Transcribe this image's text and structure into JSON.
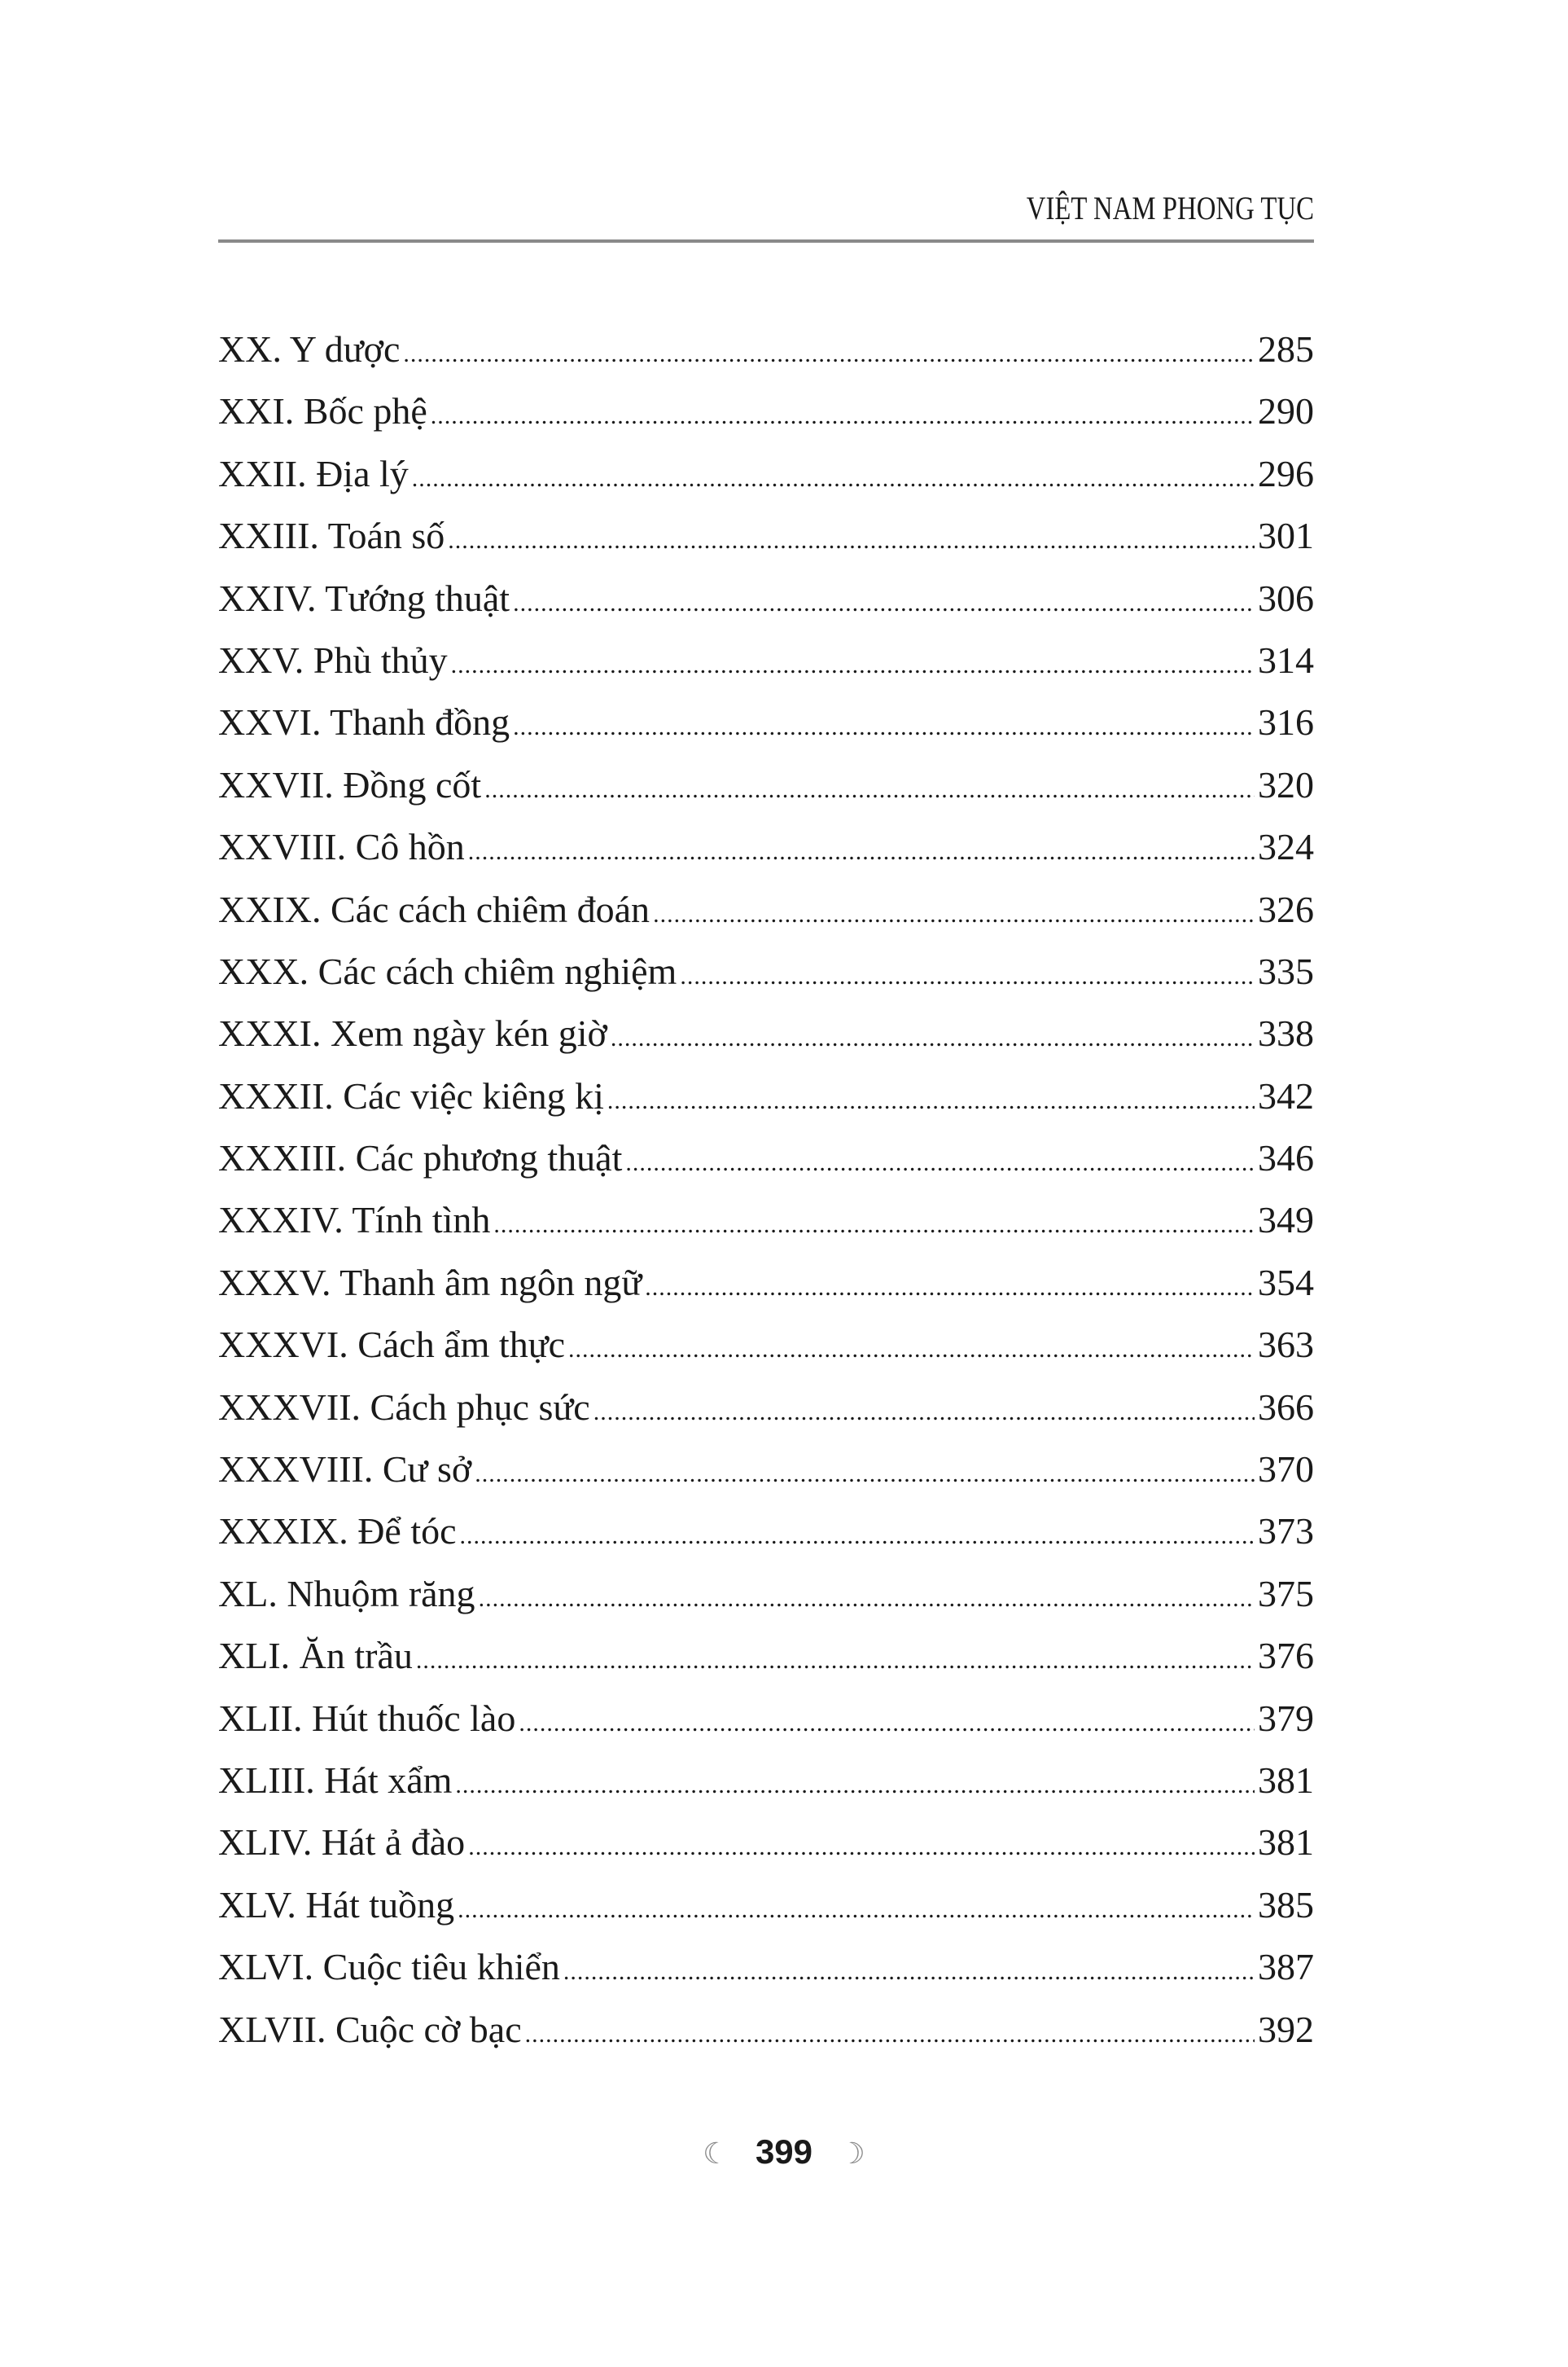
{
  "header": {
    "title": "VIỆT NAM PHONG TỤC"
  },
  "toc": [
    {
      "title": "XX. Y dược",
      "page": "285"
    },
    {
      "title": "XXI. Bốc phệ",
      "page": "290"
    },
    {
      "title": "XXII. Địa lý",
      "page": "296"
    },
    {
      "title": "XXIII. Toán số",
      "page": "301"
    },
    {
      "title": "XXIV. Tướng thuật",
      "page": "306"
    },
    {
      "title": "XXV. Phù thủy",
      "page": "314"
    },
    {
      "title": "XXVI. Thanh đồng",
      "page": "316"
    },
    {
      "title": "XXVII. Đồng cốt",
      "page": "320"
    },
    {
      "title": "XXVIII. Cô hồn",
      "page": "324"
    },
    {
      "title": "XXIX. Các cách chiêm đoán",
      "page": "326"
    },
    {
      "title": "XXX. Các cách chiêm nghiệm",
      "page": "335"
    },
    {
      "title": "XXXI. Xem ngày kén giờ",
      "page": "338"
    },
    {
      "title": "XXXII. Các việc kiêng kị",
      "page": "342"
    },
    {
      "title": "XXXIII. Các phương thuật",
      "page": "346"
    },
    {
      "title": "XXXIV. Tính tình",
      "page": "349"
    },
    {
      "title": "XXXV. Thanh âm ngôn ngữ",
      "page": "354"
    },
    {
      "title": "XXXVI. Cách ẩm thực",
      "page": "363"
    },
    {
      "title": "XXXVII. Cách phục sức",
      "page": "366"
    },
    {
      "title": "XXXVIII. Cư sở",
      "page": "370"
    },
    {
      "title": "XXXIX. Để tóc",
      "page": "373"
    },
    {
      "title": "XL. Nhuộm răng",
      "page": "375"
    },
    {
      "title": "XLI. Ăn trầu",
      "page": "376"
    },
    {
      "title": "XLII. Hút thuốc lào",
      "page": "379"
    },
    {
      "title": "XLIII. Hát xẩm",
      "page": "381"
    },
    {
      "title": "XLIV. Hát ả đào",
      "page": "381"
    },
    {
      "title": "XLV. Hát tuồng",
      "page": "385"
    },
    {
      "title": "XLVI. Cuộc tiêu khiển",
      "page": "387"
    },
    {
      "title": "XLVII. Cuộc cờ bạc",
      "page": "392"
    }
  ],
  "footer": {
    "page_number": "399",
    "ornament_left": "ornament-left-icon",
    "ornament_right": "ornament-right-icon"
  }
}
